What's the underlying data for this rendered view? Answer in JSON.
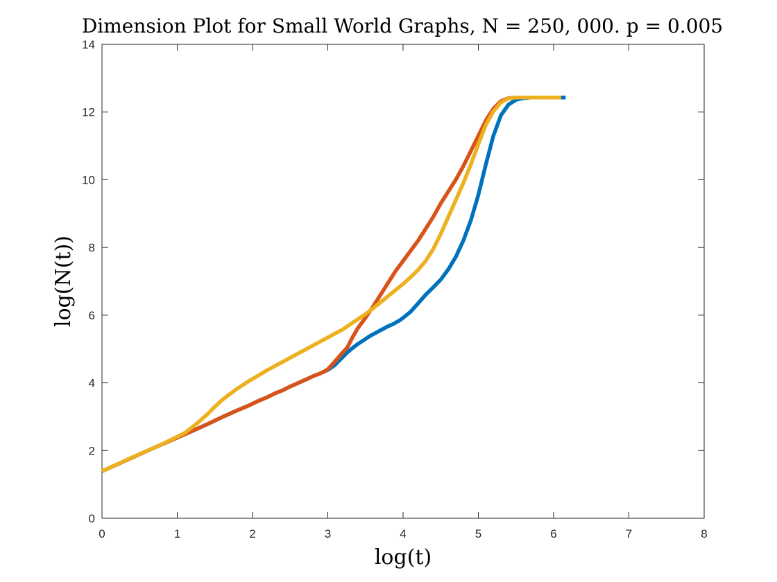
{
  "chart_data": {
    "type": "line",
    "title": "Dimension Plot for Small World Graphs, N = 250, 000.  p = 0.005",
    "xlabel": "log(t)",
    "ylabel": "log(N(t))",
    "xlim": [
      0,
      8
    ],
    "ylim": [
      0,
      14
    ],
    "xticks": [
      0,
      1,
      2,
      3,
      4,
      5,
      6,
      7,
      8
    ],
    "yticks": [
      0,
      2,
      4,
      6,
      8,
      10,
      12,
      14
    ],
    "grid": false,
    "legend": "none",
    "series": [
      {
        "color": "#0072BD",
        "x": [
          0,
          0.69,
          1.1,
          1.39,
          1.61,
          1.79,
          1.95,
          2.08,
          2.2,
          2.3,
          2.4,
          2.48,
          2.56,
          2.64,
          2.71,
          2.77,
          2.83,
          2.89,
          2.94,
          3.0,
          3.09,
          3.18,
          3.26,
          3.33,
          3.4,
          3.47,
          3.53,
          3.58,
          3.64,
          3.69,
          3.74,
          3.78,
          3.83,
          3.87,
          3.91,
          3.95,
          4.0,
          4.1,
          4.2,
          4.3,
          4.4,
          4.5,
          4.6,
          4.7,
          4.8,
          4.9,
          5.0,
          5.1,
          5.2,
          5.3,
          5.4,
          5.5,
          5.6,
          5.7,
          5.8,
          5.9,
          6.0,
          6.1,
          6.16
        ],
        "y": [
          1.39,
          2.08,
          2.48,
          2.77,
          3.0,
          3.18,
          3.33,
          3.47,
          3.58,
          3.69,
          3.78,
          3.87,
          3.95,
          4.03,
          4.1,
          4.16,
          4.22,
          4.27,
          4.32,
          4.38,
          4.52,
          4.72,
          4.9,
          5.03,
          5.15,
          5.25,
          5.34,
          5.41,
          5.48,
          5.54,
          5.6,
          5.65,
          5.7,
          5.74,
          5.79,
          5.84,
          5.92,
          6.1,
          6.35,
          6.6,
          6.82,
          7.05,
          7.35,
          7.72,
          8.2,
          8.8,
          9.55,
          10.45,
          11.3,
          11.9,
          12.22,
          12.36,
          12.41,
          12.43,
          12.43,
          12.43,
          12.43,
          12.43,
          12.43
        ]
      },
      {
        "color": "#D95319",
        "x": [
          0,
          0.69,
          1.1,
          1.39,
          1.61,
          1.79,
          1.95,
          2.08,
          2.2,
          2.3,
          2.4,
          2.48,
          2.56,
          2.64,
          2.71,
          2.77,
          2.83,
          2.89,
          2.94,
          3.0,
          3.09,
          3.18,
          3.26,
          3.33,
          3.4,
          3.5,
          3.6,
          3.7,
          3.8,
          3.9,
          4.0,
          4.1,
          4.2,
          4.3,
          4.4,
          4.5,
          4.6,
          4.7,
          4.8,
          4.9,
          5.0,
          5.1,
          5.2,
          5.3,
          5.4,
          5.5,
          5.6,
          5.7,
          5.8,
          5.9,
          6.0,
          6.1
        ],
        "y": [
          1.39,
          2.08,
          2.48,
          2.77,
          3.0,
          3.18,
          3.33,
          3.47,
          3.58,
          3.69,
          3.78,
          3.87,
          3.95,
          4.03,
          4.1,
          4.16,
          4.22,
          4.27,
          4.32,
          4.4,
          4.62,
          4.85,
          5.05,
          5.35,
          5.62,
          5.92,
          6.25,
          6.6,
          6.95,
          7.3,
          7.6,
          7.9,
          8.2,
          8.55,
          8.9,
          9.3,
          9.65,
          10.0,
          10.4,
          10.85,
          11.3,
          11.75,
          12.1,
          12.32,
          12.41,
          12.43,
          12.43,
          12.43,
          12.43,
          12.43,
          12.43,
          12.43
        ]
      },
      {
        "color": "#EDB120",
        "x": [
          0,
          0.4,
          0.69,
          0.9,
          1.1,
          1.25,
          1.39,
          1.5,
          1.61,
          1.79,
          1.95,
          2.08,
          2.2,
          2.3,
          2.4,
          2.5,
          2.6,
          2.7,
          2.8,
          2.9,
          3.0,
          3.1,
          3.2,
          3.3,
          3.4,
          3.5,
          3.6,
          3.7,
          3.8,
          3.9,
          4.0,
          4.1,
          4.2,
          4.3,
          4.4,
          4.5,
          4.6,
          4.7,
          4.8,
          4.9,
          5.0,
          5.1,
          5.2,
          5.3,
          5.4,
          5.5,
          5.6,
          5.7,
          5.8,
          5.9,
          6.0,
          6.1
        ],
        "y": [
          1.39,
          1.8,
          2.08,
          2.3,
          2.52,
          2.78,
          3.05,
          3.3,
          3.52,
          3.82,
          4.05,
          4.22,
          4.38,
          4.5,
          4.62,
          4.74,
          4.86,
          4.98,
          5.1,
          5.22,
          5.34,
          5.46,
          5.58,
          5.73,
          5.88,
          6.03,
          6.2,
          6.38,
          6.56,
          6.74,
          6.92,
          7.12,
          7.34,
          7.6,
          7.95,
          8.4,
          8.9,
          9.4,
          9.9,
          10.45,
          11.05,
          11.62,
          12.02,
          12.28,
          12.4,
          12.43,
          12.43,
          12.43,
          12.43,
          12.43,
          12.43,
          12.43
        ]
      }
    ]
  }
}
